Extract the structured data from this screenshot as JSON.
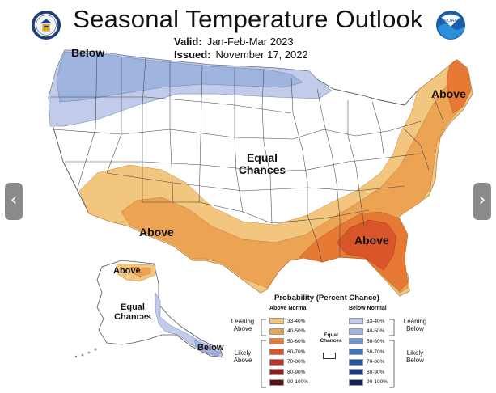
{
  "header": {
    "title": "Seasonal Temperature Outlook",
    "valid_label": "Valid:",
    "valid_value": "Jan-Feb-Mar 2023",
    "issued_label": "Issued:",
    "issued_value": "November 17, 2022"
  },
  "logos": {
    "left": "department-of-commerce-seal",
    "right": "noaa-logo",
    "noaa_text": "NOAA"
  },
  "navigation": {
    "prev_icon": "chevron-left-icon",
    "next_icon": "chevron-right-icon",
    "prev_glyph": "‹",
    "next_glyph": "›"
  },
  "map_labels": {
    "below_nw": "Below",
    "above_ne": "Above",
    "equal_center_1": "Equal",
    "equal_center_2": "Chances",
    "above_sw": "Above",
    "above_se": "Above",
    "above_alaska": "Above",
    "equal_alaska_1": "Equal",
    "equal_alaska_2": "Chances",
    "below_alaska": "Below"
  },
  "colors": {
    "above_33_40": "#f2c67e",
    "above_40_50": "#eda354",
    "above_50_60": "#e67a35",
    "above_60_70": "#d8562a",
    "above_70_80": "#c2302a",
    "above_80_90": "#8f1e1e",
    "above_90_100": "#5a1010",
    "below_33_40": "#c2cbea",
    "below_40_50": "#9fb5e0",
    "below_50_60": "#6d95cf",
    "below_60_70": "#3f74bd",
    "below_70_80": "#2456a3",
    "below_80_90": "#1b3a85",
    "below_90_100": "#141e5a",
    "equal": "#ffffff",
    "border": "#555555"
  },
  "legend": {
    "title": "Probability (Percent Chance)",
    "above_header": "Above Normal",
    "below_header": "Below Normal",
    "equal_1": "Equal",
    "equal_2": "Chances",
    "leaning_above_1": "Leaning",
    "leaning_above_2": "Above",
    "likely_above_1": "Likely",
    "likely_above_2": "Above",
    "leaning_below_1": "Leaning",
    "leaning_below_2": "Below",
    "likely_below_1": "Likely",
    "likely_below_2": "Below",
    "ranges": [
      "33-40%",
      "40-50%",
      "50-60%",
      "60-70%",
      "70-80%",
      "80-90%",
      "90-100%"
    ]
  }
}
